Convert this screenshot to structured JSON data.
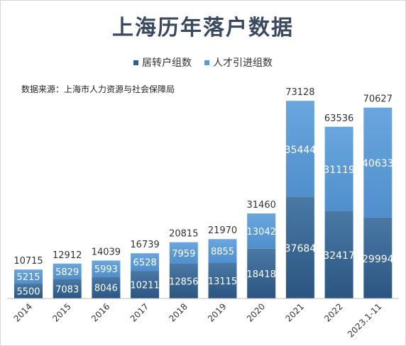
{
  "chart_data": {
    "type": "bar",
    "stacked": true,
    "title": "上海历年落户数据",
    "source": "数据来源：上海市人力资源与社会保障局",
    "categories": [
      "2014",
      "2015",
      "2016",
      "2017",
      "2018",
      "2019",
      "2020",
      "2021",
      "2022",
      "2023.1-11"
    ],
    "series": [
      {
        "name": "居转户组数",
        "values": [
          5500,
          7083,
          8046,
          10211,
          12856,
          13115,
          18418,
          37684,
          32417,
          29994
        ],
        "color": "#2f5f8c"
      },
      {
        "name": "人才引进组数",
        "values": [
          5215,
          5829,
          5993,
          6528,
          7959,
          8855,
          13042,
          35444,
          31119,
          40633
        ],
        "color": "#5b9bd5"
      }
    ],
    "totals": [
      10715,
      12912,
      14039,
      16739,
      20815,
      21970,
      31460,
      73128,
      63536,
      70627
    ],
    "ylim": [
      0,
      80000
    ],
    "legend_position": "top-center",
    "grid": false
  }
}
